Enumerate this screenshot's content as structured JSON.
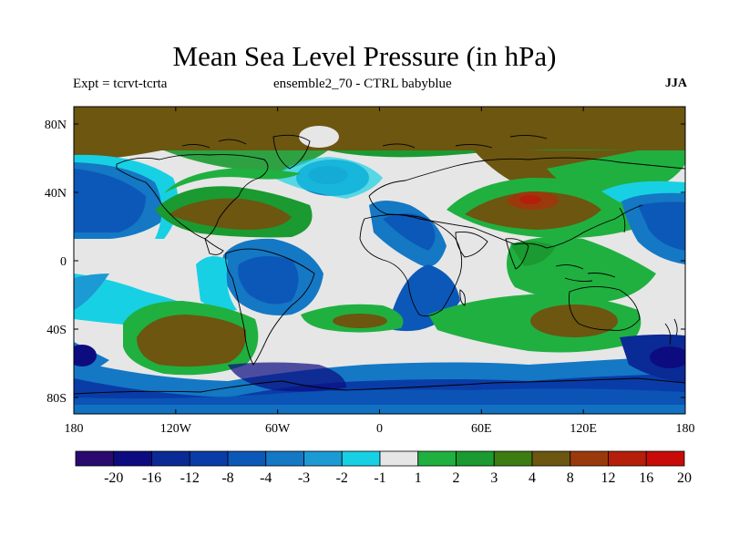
{
  "title": "Mean Sea Level Pressure (in hPa)",
  "expt_label": "Expt = tcrvt-tcrta",
  "ensemble_label": "ensemble2_70 - CTRL babyblue",
  "season": "JJA",
  "lat_ticks": [
    "80N",
    "40N",
    "0",
    "40S",
    "80S"
  ],
  "lon_ticks": [
    "180",
    "120W",
    "60W",
    "0",
    "60E",
    "120E",
    "180"
  ],
  "colorbar": {
    "labels": [
      "-20",
      "-16",
      "-12",
      "-8",
      "-4",
      "-3",
      "-2",
      "-1",
      "1",
      "2",
      "3",
      "4",
      "8",
      "12",
      "16",
      "20"
    ],
    "colors": [
      "#2a0a6e",
      "#0c0c80",
      "#0a2a96",
      "#0a3ca8",
      "#0c58b8",
      "#1478c4",
      "#1c9ad4",
      "#18d0e4",
      "#e6e6e6",
      "#20b040",
      "#1a9a30",
      "#3c7c10",
      "#6c5610",
      "#9a3a0c",
      "#b41e0a",
      "#c80a08"
    ]
  },
  "colors": {
    "land_outline": "#000000",
    "background_field": "#e6e6e6"
  }
}
